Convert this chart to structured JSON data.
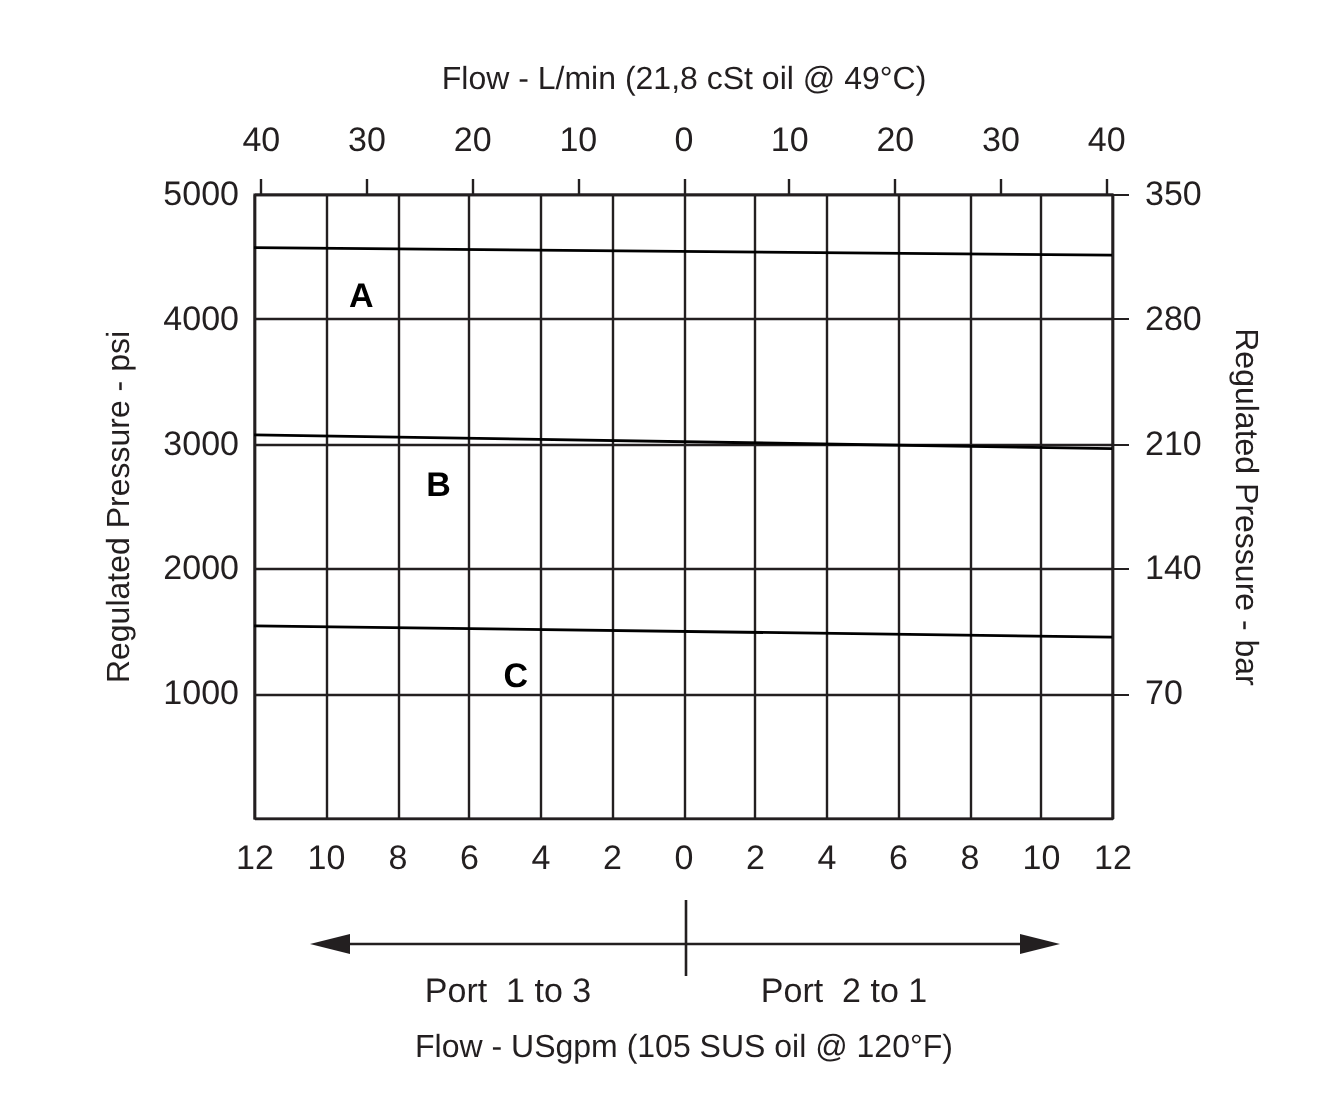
{
  "chart_data": {
    "type": "line",
    "xlabel": "Flow - USgpm (105 SUS oil @ 120°F)",
    "x2label": "Flow - L/min (21,8 cSt oil @ 49°C)",
    "ylabel": "Regulated Pressure - psi",
    "y2label": "Regulated Pressure - bar",
    "xlim": [
      -12,
      12
    ],
    "xticks": [
      {
        "value": -12,
        "label": "12"
      },
      {
        "value": -10,
        "label": "10"
      },
      {
        "value": -8,
        "label": "8"
      },
      {
        "value": -6,
        "label": "6"
      },
      {
        "value": -4,
        "label": "4"
      },
      {
        "value": -2,
        "label": "2"
      },
      0,
      2,
      4,
      6,
      8,
      10,
      12
    ],
    "x2lim": [
      -40.6,
      40.6
    ],
    "x2ticks": [
      {
        "value": -40,
        "label": "40"
      },
      {
        "value": -30,
        "label": "30"
      },
      {
        "value": -20,
        "label": "20"
      },
      {
        "value": -10,
        "label": "10"
      },
      0,
      10,
      20,
      30,
      40
    ],
    "ylim": [
      0,
      5000
    ],
    "yticks": [
      1000,
      2000,
      3000,
      4000,
      5000
    ],
    "y2lim": [
      0,
      350
    ],
    "y2ticks": [
      70,
      140,
      210,
      280,
      350
    ],
    "grid": true,
    "x": [
      -12,
      12
    ],
    "series": [
      {
        "name": "A",
        "color": "#000000",
        "values": [
          4570,
          4510
        ]
      },
      {
        "name": "B",
        "color": "#000000",
        "values": [
          3070,
          2960
        ]
      },
      {
        "name": "C",
        "color": "#000000",
        "values": [
          1540,
          1450
        ]
      }
    ],
    "annotations": [
      "Port  1 to 3",
      "Port  2 to 1"
    ]
  }
}
